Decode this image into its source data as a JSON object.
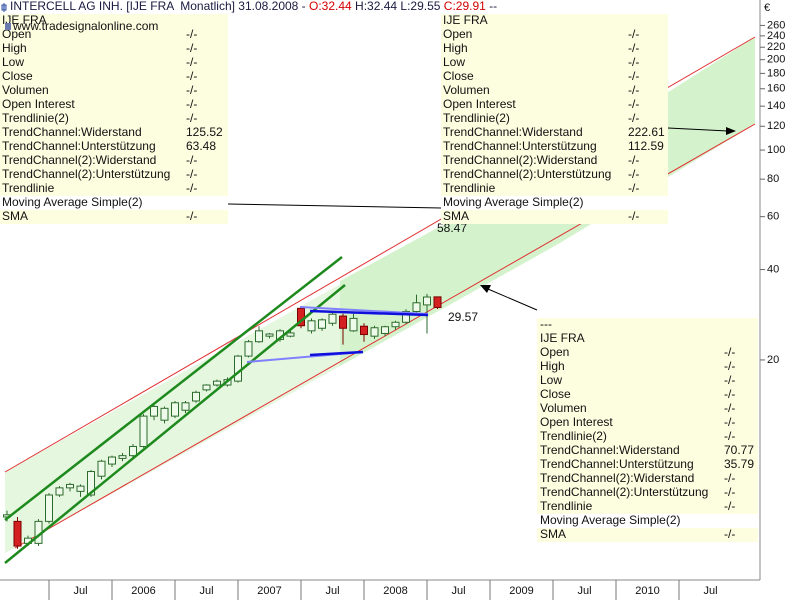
{
  "chart_data": {
    "type": "candlestick",
    "title_parts": [
      {
        "text": "INTERCELL AG INH. [IJE FRA  Monatlich] 31.08.2008 - ",
        "color": "#1a1a40"
      },
      {
        "text": "O:32.44",
        "color": "#d40000"
      },
      {
        "text": " H:32.44 L:29.55 ",
        "color": "#1a1a40"
      },
      {
        "text": "C:29.91",
        "color": "#d40000"
      },
      {
        "text": " --",
        "color": "#1a1a40"
      }
    ],
    "watermark": "www.tradesignalonline.com",
    "y_axis_label": "€",
    "log_scale": true,
    "up_color": "#eefbea",
    "up_edge": "#2d6b2d",
    "down_color": "#d42020",
    "down_edge": "#7a0000",
    "x": [
      "2005-03",
      "2005-04",
      "2005-05",
      "2005-06",
      "2005-07",
      "2005-08",
      "2005-09",
      "2005-10",
      "2005-11",
      "2005-12",
      "2006-01",
      "2006-02",
      "2006-03",
      "2006-04",
      "2006-05",
      "2006-06",
      "2006-07",
      "2006-08",
      "2006-09",
      "2006-10",
      "2006-11",
      "2006-12",
      "2007-01",
      "2007-02",
      "2007-03",
      "2007-04",
      "2007-05",
      "2007-06",
      "2007-07",
      "2007-08",
      "2007-09",
      "2007-10",
      "2007-11",
      "2007-12",
      "2008-01",
      "2008-02",
      "2008-03",
      "2008-04",
      "2008-05",
      "2008-06",
      "2008-07",
      "2008-08"
    ],
    "open": [
      6.0,
      5.8,
      4.9,
      4.9,
      5.8,
      7.1,
      7.5,
      7.3,
      7.1,
      8.2,
      9.0,
      9.4,
      9.6,
      10.3,
      13.0,
      12.6,
      13.0,
      13.6,
      14.6,
      15.9,
      16.5,
      16.5,
      17.0,
      20.6,
      23.0,
      24.0,
      23.4,
      24.0,
      29.7,
      25.0,
      25.5,
      26.5,
      28.0,
      25.0,
      25.9,
      24.0,
      24.5,
      25.8,
      26.7,
      29.0,
      30.5,
      32.44
    ],
    "high": [
      6.3,
      6.0,
      5.2,
      5.9,
      7.2,
      7.6,
      7.8,
      7.7,
      8.6,
      9.3,
      9.6,
      9.8,
      10.5,
      13.2,
      14.2,
      14.0,
      14.6,
      14.6,
      15.8,
      16.6,
      17.2,
      17.5,
      20.8,
      23.3,
      25.9,
      24.6,
      25.3,
      25.0,
      30.0,
      27.5,
      27.5,
      28.8,
      28.5,
      28.5,
      26.5,
      26.0,
      26.0,
      27.0,
      29.5,
      33.0,
      33.2,
      32.44
    ],
    "low": [
      5.8,
      4.7,
      4.8,
      4.8,
      5.7,
      7.0,
      7.3,
      7.0,
      7.0,
      8.0,
      8.8,
      9.2,
      9.4,
      10.2,
      12.6,
      12.3,
      12.8,
      13.3,
      14.4,
      15.7,
      16.3,
      16.3,
      16.8,
      20.4,
      22.8,
      23.6,
      23.0,
      23.8,
      25.5,
      24.5,
      25.0,
      26.0,
      22.5,
      24.8,
      23.0,
      23.5,
      24.0,
      25.2,
      26.3,
      28.8,
      24.5,
      29.55
    ],
    "close": [
      6.1,
      4.8,
      5.1,
      5.8,
      7.1,
      7.5,
      7.7,
      7.6,
      8.5,
      9.2,
      9.5,
      9.6,
      10.3,
      13.0,
      14.0,
      13.8,
      14.4,
      14.4,
      15.6,
      16.5,
      17.0,
      17.2,
      20.6,
      23.0,
      25.0,
      24.4,
      25.0,
      24.6,
      26.0,
      27.0,
      27.2,
      28.4,
      25.5,
      27.5,
      24.3,
      25.6,
      25.8,
      26.7,
      29.0,
      31.0,
      32.4,
      29.91
    ],
    "xlim": [
      "2005-02",
      "2011-02"
    ],
    "xticks": [
      {
        "value": "2005-07",
        "label": "Jul"
      },
      {
        "value": "2006-01",
        "label": "2006"
      },
      {
        "value": "2006-07",
        "label": "Jul"
      },
      {
        "value": "2007-01",
        "label": "2007"
      },
      {
        "value": "2007-07",
        "label": "Jul"
      },
      {
        "value": "2008-01",
        "label": "2008"
      },
      {
        "value": "2008-07",
        "label": "Jul"
      },
      {
        "value": "2009-01",
        "label": "2009"
      },
      {
        "value": "2009-07",
        "label": "Jul"
      },
      {
        "value": "2010-01",
        "label": "2010"
      },
      {
        "value": "2010-07",
        "label": "Jul"
      }
    ],
    "ylim": [
      3.7,
      316
    ],
    "yticks": [
      20,
      40,
      60,
      80,
      100,
      120,
      140,
      160,
      180,
      200,
      220,
      240,
      260
    ],
    "annotations": [
      {
        "text": "58.47",
        "color": "#d40000"
      },
      {
        "text": "29.57",
        "color": "#d40000"
      }
    ]
  },
  "panels": [
    {
      "headers": [
        "IJE FRA"
      ],
      "rows": [
        [
          "Open",
          "-/-"
        ],
        [
          "High",
          "-/-"
        ],
        [
          "Low",
          "-/-"
        ],
        [
          "Close",
          "-/-"
        ],
        [
          "Volumen",
          "-/-"
        ],
        [
          "Open Interest",
          "-/-"
        ],
        [
          "Trendlinie(2)",
          "-/-"
        ],
        [
          "TrendChannel:Widerstand",
          "125.52"
        ],
        [
          "TrendChannel:Unterstützung",
          "63.48"
        ],
        [
          "TrendChannel(2):Widerstand",
          "-/-"
        ],
        [
          "TrendChannel(2):Unterstützung",
          "-/-"
        ],
        [
          "Trendlinie",
          "-/-"
        ],
        [
          "Moving Average Simple(2)"
        ],
        [
          "SMA",
          "-/-"
        ]
      ]
    },
    {
      "headers": [
        "IJE FRA"
      ],
      "rows": [
        [
          "Open",
          "-/-"
        ],
        [
          "High",
          "-/-"
        ],
        [
          "Low",
          "-/-"
        ],
        [
          "Close",
          "-/-"
        ],
        [
          "Volumen",
          "-/-"
        ],
        [
          "Open Interest",
          "-/-"
        ],
        [
          "Trendlinie(2)",
          "-/-"
        ],
        [
          "TrendChannel:Widerstand",
          "222.61"
        ],
        [
          "TrendChannel:Unterstützung",
          "112.59"
        ],
        [
          "TrendChannel(2):Widerstand",
          "-/-"
        ],
        [
          "TrendChannel(2):Unterstützung",
          "-/-"
        ],
        [
          "Trendlinie",
          "-/-"
        ],
        [
          "Moving Average Simple(2)"
        ],
        [
          "SMA",
          "-/-"
        ]
      ]
    },
    {
      "headers": [
        "---",
        "IJE FRA"
      ],
      "rows": [
        [
          "Open",
          "-/-"
        ],
        [
          "High",
          "-/-"
        ],
        [
          "Low",
          "-/-"
        ],
        [
          "Close",
          "-/-"
        ],
        [
          "Volumen",
          "-/-"
        ],
        [
          "Open Interest",
          "-/-"
        ],
        [
          "Trendlinie(2)",
          "-/-"
        ],
        [
          "TrendChannel:Widerstand",
          "70.77"
        ],
        [
          "TrendChannel:Unterstützung",
          "35.79"
        ],
        [
          "TrendChannel(2):Widerstand",
          "-/-"
        ],
        [
          "TrendChannel(2):Unterstützung",
          "-/-"
        ],
        [
          "Trendlinie",
          "-/-"
        ],
        [
          "Moving Average Simple(2)"
        ],
        [
          "SMA",
          "-/-"
        ]
      ]
    }
  ]
}
